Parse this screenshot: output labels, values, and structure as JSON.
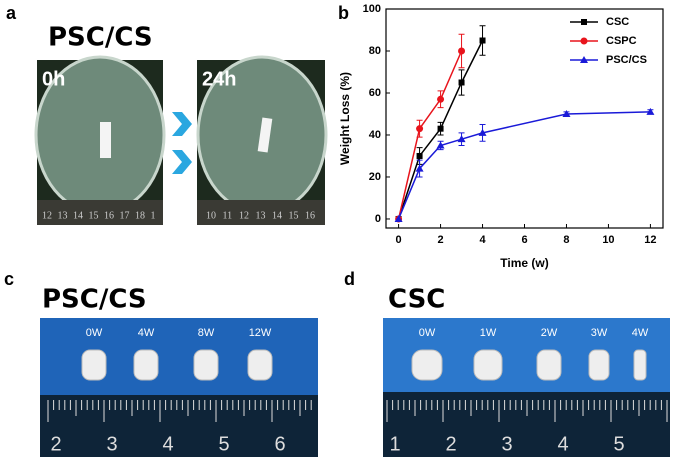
{
  "panels": {
    "a": {
      "label": "a",
      "title": "PSC/CS",
      "photo_labels": [
        "0h",
        "24h"
      ],
      "ruler_left": [
        "12",
        "13",
        "14",
        "15",
        "16",
        "17",
        "18",
        "1"
      ],
      "ruler_right": [
        "10",
        "11",
        "12",
        "13",
        "14",
        "15",
        "16"
      ]
    },
    "b": {
      "label": "b"
    },
    "c": {
      "label": "c",
      "title": "PSC/CS",
      "photo_labels": [
        "0W",
        "4W",
        "8W",
        "12W"
      ],
      "ruler": [
        "2",
        "3",
        "4",
        "5",
        "6"
      ]
    },
    "d": {
      "label": "d",
      "title": "CSC",
      "photo_labels": [
        "0W",
        "1W",
        "2W",
        "3W",
        "4W"
      ],
      "ruler": [
        "1",
        "2",
        "3",
        "4",
        "5"
      ]
    }
  },
  "chart_data": {
    "type": "line",
    "x_label": "Time (w)",
    "y_label": "Weight Loss (%)",
    "x": [
      0,
      1,
      2,
      3,
      4,
      8,
      12
    ],
    "series": [
      {
        "name": "CSC",
        "color": "#000000",
        "marker": "square",
        "values": [
          0,
          30,
          43,
          65,
          85,
          null,
          null
        ],
        "errors": [
          0,
          4,
          3,
          6,
          7,
          null,
          null
        ]
      },
      {
        "name": "CSPC",
        "color": "#e8141c",
        "marker": "circle",
        "values": [
          0,
          43,
          57,
          80,
          null,
          null,
          null
        ],
        "errors": [
          0,
          4,
          4,
          8,
          null,
          null,
          null
        ]
      },
      {
        "name": "PSC/CS",
        "color": "#1a1ad8",
        "marker": "triangle",
        "values": [
          0,
          24,
          35,
          38,
          41,
          50,
          51
        ],
        "errors": [
          0,
          4,
          2,
          3,
          4,
          1,
          1
        ]
      }
    ],
    "xlim": [
      -0.6,
      12.6
    ],
    "xticks": [
      0,
      2,
      4,
      6,
      8,
      10,
      12
    ],
    "ylim": [
      -4.3,
      100
    ],
    "yticks": [
      0,
      20,
      40,
      60,
      80,
      100
    ],
    "legend": "upper right"
  }
}
